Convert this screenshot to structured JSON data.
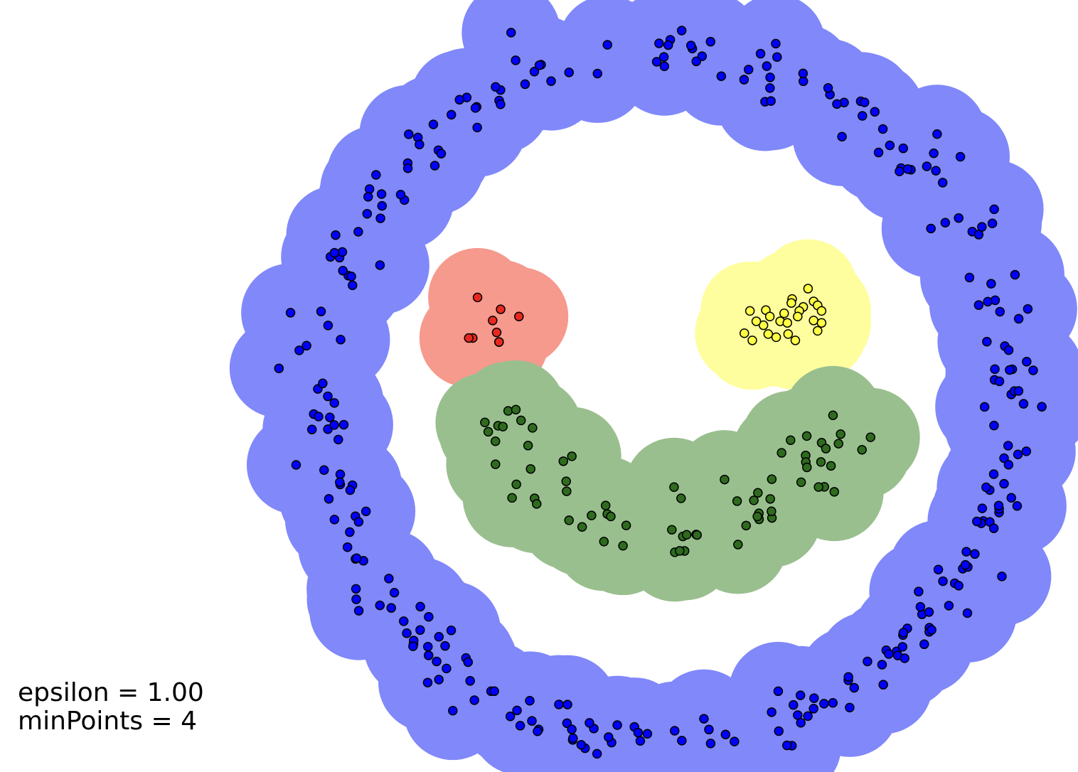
{
  "parameters": {
    "epsilon_label": "epsilon = 1.00",
    "minpoints_label": "minPoints = 4"
  },
  "chart_data": {
    "type": "scatter",
    "title": "",
    "xlabel": "",
    "ylabel": "",
    "axes_visible": false,
    "grid": false,
    "xlim": [
      -5,
      5
    ],
    "ylim": [
      -5,
      5
    ],
    "epsilon": 1.0,
    "min_points": 4,
    "point_stroke": "#000000",
    "clusters": [
      {
        "id": "outer-ring",
        "point_color": "#0000ff",
        "region_color": "#8088fa",
        "shape": "ring",
        "center": [
          0,
          0
        ],
        "radius": 4.35,
        "spread": 0.18,
        "count": 300
      },
      {
        "id": "left-eye",
        "point_color": "#e8281e",
        "region_color": "#f59a8d",
        "points": [
          [
            -2.37,
            1.22
          ],
          [
            -2.08,
            1.07
          ],
          [
            -2.18,
            0.93
          ],
          [
            -1.85,
            0.98
          ],
          [
            -2.13,
            0.78
          ],
          [
            -2.43,
            0.71
          ],
          [
            -2.48,
            0.71
          ],
          [
            -2.1,
            0.66
          ],
          [
            -2.1,
            0.66
          ]
        ]
      },
      {
        "id": "right-eye",
        "point_color": "#ffff44",
        "region_color": "#fefe9e",
        "points": [
          [
            1.78,
            1.33
          ],
          [
            1.58,
            1.2
          ],
          [
            1.85,
            1.17
          ],
          [
            1.57,
            1.15
          ],
          [
            1.72,
            1.1
          ],
          [
            1.67,
            1.05
          ],
          [
            1.9,
            1.12
          ],
          [
            1.95,
            1.05
          ],
          [
            1.85,
            0.93
          ],
          [
            1.65,
            0.98
          ],
          [
            1.43,
            0.92
          ],
          [
            1.05,
            1.05
          ],
          [
            1.25,
            1.06
          ],
          [
            1.3,
            0.98
          ],
          [
            1.48,
            1.02
          ],
          [
            1.22,
            0.87
          ],
          [
            1.52,
            0.9
          ],
          [
            1.13,
            0.92
          ],
          [
            1.95,
            0.9
          ],
          [
            1.9,
            0.8
          ],
          [
            1.28,
            0.76
          ],
          [
            1.53,
            0.76
          ],
          [
            0.98,
            0.77
          ],
          [
            1.08,
            0.68
          ],
          [
            1.38,
            0.72
          ],
          [
            1.62,
            0.68
          ]
        ]
      },
      {
        "id": "mouth",
        "point_color": "#2e6b1e",
        "region_color": "#9abf8f",
        "shape": "arc",
        "center": [
          0,
          0.8
        ],
        "radius": 2.5,
        "angle_range_deg": [
          205,
          335
        ],
        "spread": 0.22,
        "count": 72
      }
    ]
  }
}
